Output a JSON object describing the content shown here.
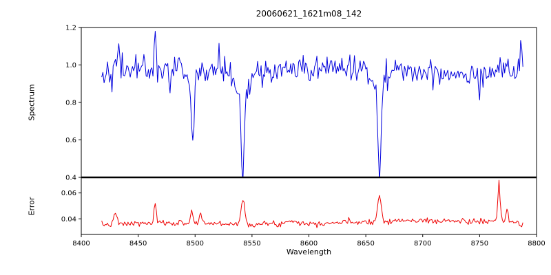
{
  "figure": {
    "title": "20060621_1621m08_142",
    "background": "#ffffff"
  },
  "axes": {
    "xlabel": "Wavelength",
    "xlim": [
      8400,
      8800
    ],
    "x_ticks": {
      "values": [
        8400,
        8450,
        8500,
        8550,
        8600,
        8650,
        8700,
        8750,
        8800
      ],
      "labels": [
        "8400",
        "8450",
        "8500",
        "8550",
        "8600",
        "8650",
        "8700",
        "8750",
        "8800"
      ]
    },
    "spectrum": {
      "ylabel": "Spectrum",
      "ylim": [
        0.4,
        1.2
      ],
      "y_ticks": {
        "values": [
          0.4,
          0.6,
          0.8,
          1.0,
          1.2
        ],
        "labels": [
          "0.4",
          "0.6",
          "0.8",
          "1.0",
          "1.2"
        ]
      }
    },
    "error": {
      "ylabel": "Error",
      "ylim": [
        0.028,
        0.072
      ],
      "y_ticks": {
        "values": [
          0.04,
          0.06
        ],
        "labels": [
          "0.04",
          "0.06"
        ]
      }
    }
  },
  "chart_data": [
    {
      "type": "line",
      "name": "spectrum",
      "panel": "spectrum",
      "color": "#0000dd",
      "x_range": [
        8418,
        8788
      ],
      "step": 1.0,
      "baseline": 0.97,
      "baseline_slope": 0,
      "baseline_wave": {
        "amp": 0.012,
        "period": 170
      },
      "noise_sigma": 0.036,
      "seed": 42,
      "features": [
        {
          "center": 8433,
          "amp": 0.1,
          "sigma": 0.8,
          "kind": "emission-spike"
        },
        {
          "center": 8465,
          "amp": 0.21,
          "sigma": 0.7,
          "kind": "emission-spike"
        },
        {
          "center": 8478,
          "amp": -0.12,
          "sigma": 0.8,
          "kind": "narrow-dip"
        },
        {
          "center": 8498,
          "amp": -0.33,
          "sigma": 1.2,
          "kind": "absorption-line-8498"
        },
        {
          "center": 8498,
          "amp": -0.05,
          "sigma": 3.5,
          "kind": "absorption-wing"
        },
        {
          "center": 8521,
          "amp": 0.12,
          "sigma": 0.7,
          "kind": "emission-spike"
        },
        {
          "center": 8542,
          "amp": -0.45,
          "sigma": 1.5,
          "kind": "absorption-line-8542"
        },
        {
          "center": 8542,
          "amp": -0.1,
          "sigma": 5.5,
          "kind": "absorption-wing"
        },
        {
          "center": 8662,
          "amp": -0.44,
          "sigma": 1.4,
          "kind": "absorption-line-8662"
        },
        {
          "center": 8662,
          "amp": -0.08,
          "sigma": 4.5,
          "kind": "absorption-wing"
        },
        {
          "center": 8750,
          "amp": -0.13,
          "sigma": 0.8,
          "kind": "narrow-dip"
        },
        {
          "center": 8786,
          "amp": 0.1,
          "sigma": 0.8,
          "kind": "emission-spike"
        }
      ]
    },
    {
      "type": "line",
      "name": "error",
      "panel": "error",
      "color": "#ee0000",
      "x_range": [
        8418,
        8788
      ],
      "step": 1.0,
      "baseline": 0.0355,
      "baseline_slope": 8.5e-06,
      "baseline_wave": {
        "amp": 0.0008,
        "period": 210
      },
      "noise_sigma": 0.0011,
      "seed": 7,
      "features": [
        {
          "center": 8430,
          "amp": 0.009,
          "sigma": 1.2,
          "kind": "peak"
        },
        {
          "center": 8465,
          "amp": 0.015,
          "sigma": 0.9,
          "kind": "peak"
        },
        {
          "center": 8497,
          "amp": 0.01,
          "sigma": 1.0,
          "kind": "peak"
        },
        {
          "center": 8505,
          "amp": 0.009,
          "sigma": 0.9,
          "kind": "peak"
        },
        {
          "center": 8542,
          "amp": 0.018,
          "sigma": 1.6,
          "kind": "peak"
        },
        {
          "center": 8585,
          "amp": 0.003,
          "sigma": 4.0,
          "kind": "bump"
        },
        {
          "center": 8662,
          "amp": 0.02,
          "sigma": 1.5,
          "kind": "peak"
        },
        {
          "center": 8767,
          "amp": 0.031,
          "sigma": 0.9,
          "kind": "peak"
        },
        {
          "center": 8774,
          "amp": 0.011,
          "sigma": 0.9,
          "kind": "peak"
        },
        {
          "center": 8786,
          "amp": -0.004,
          "sigma": 1.5,
          "kind": "end-dip"
        }
      ]
    }
  ]
}
